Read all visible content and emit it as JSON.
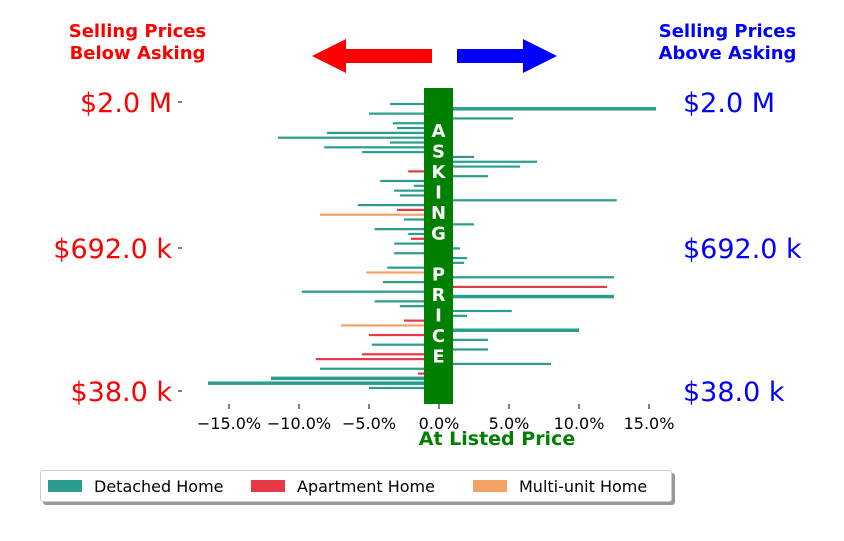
{
  "header_left": {
    "line1": "Selling Prices",
    "line2": "Below Asking"
  },
  "header_right": {
    "line1": "Selling Prices",
    "line2": "Above Asking"
  },
  "asking_band_letters": [
    "A",
    "S",
    "K",
    "I",
    "N",
    "G",
    "",
    "P",
    "R",
    "I",
    "C",
    "E"
  ],
  "colors": {
    "detached": "#2a9d8f",
    "apartment": "#e63946",
    "multi": "#f4a261",
    "band": "#008000",
    "left_text": "#ff0000",
    "right_text": "#0000ff"
  },
  "legend": [
    {
      "label": "Detached Home",
      "color": "#2a9d8f"
    },
    {
      "label": "Apartment Home",
      "color": "#e63946"
    },
    {
      "label": "Multi-unit Home",
      "color": "#f4a261"
    }
  ],
  "chart_data": {
    "type": "bar",
    "orientation": "horizontal",
    "xlabel": "At Listed Price",
    "xlim": [
      -17.5,
      17
    ],
    "x_ticks": [
      -15,
      -10,
      -5,
      0,
      5,
      10,
      15
    ],
    "x_tick_labels": [
      "−15.0%",
      "−10.0%",
      "−5.0%",
      "0.0%",
      "5.0%",
      "10.0%",
      "15.0%"
    ],
    "y_ticks_left": [
      "$2.0 M",
      "$692.0 k",
      "$38.0 k"
    ],
    "y_ticks_right": [
      "$2.0 M",
      "$692.0 k",
      "$38.0 k"
    ],
    "bars": [
      {
        "t": "d",
        "v": -3.5
      },
      {
        "t": "d",
        "v": 15.5
      },
      {
        "t": "d",
        "v": -5
      },
      {
        "t": "d",
        "v": 5.3
      },
      {
        "t": "d",
        "v": -3.3
      },
      {
        "t": "d",
        "v": -3
      },
      {
        "t": "d",
        "v": -8
      },
      {
        "t": "d",
        "v": -11.5
      },
      {
        "t": "d",
        "v": -3.5
      },
      {
        "t": "d",
        "v": -8.2
      },
      {
        "t": "d",
        "v": -5.5
      },
      {
        "t": "d",
        "v": 2.5
      },
      {
        "t": "d",
        "v": 7
      },
      {
        "t": "d",
        "v": 5.8
      },
      {
        "t": "a",
        "v": -2.2
      },
      {
        "t": "d",
        "v": 3.5
      },
      {
        "t": "d",
        "v": -4.2
      },
      {
        "t": "d",
        "v": -1.8
      },
      {
        "t": "d",
        "v": -3.2
      },
      {
        "t": "d",
        "v": -2.8
      },
      {
        "t": "d",
        "v": 12.7
      },
      {
        "t": "d",
        "v": -5.8
      },
      {
        "t": "a",
        "v": -3
      },
      {
        "t": "m",
        "v": -8.5
      },
      {
        "t": "d",
        "v": -2.5
      },
      {
        "t": "d",
        "v": 2.5
      },
      {
        "t": "d",
        "v": -4.6
      },
      {
        "t": "d",
        "v": -2.2
      },
      {
        "t": "a",
        "v": -2
      },
      {
        "t": "d",
        "v": -3.2
      },
      {
        "t": "d",
        "v": 1.5
      },
      {
        "t": "d",
        "v": -3.2
      },
      {
        "t": "d",
        "v": 2
      },
      {
        "t": "d",
        "v": 1.8
      },
      {
        "t": "d",
        "v": -3.7
      },
      {
        "t": "m",
        "v": -5.2
      },
      {
        "t": "d",
        "v": 12.5
      },
      {
        "t": "d",
        "v": -4
      },
      {
        "t": "a",
        "v": 12
      },
      {
        "t": "d",
        "v": -9.8
      },
      {
        "t": "d",
        "v": 12.5
      },
      {
        "t": "d",
        "v": -4.6
      },
      {
        "t": "d",
        "v": -2.8
      },
      {
        "t": "d",
        "v": 5.2
      },
      {
        "t": "d",
        "v": 2
      },
      {
        "t": "a",
        "v": -2.5
      },
      {
        "t": "m",
        "v": -7
      },
      {
        "t": "d",
        "v": 10
      },
      {
        "t": "a",
        "v": -5
      },
      {
        "t": "d",
        "v": 3.5
      },
      {
        "t": "d",
        "v": -4.8
      },
      {
        "t": "d",
        "v": 3.5
      },
      {
        "t": "a",
        "v": -5.5
      },
      {
        "t": "a",
        "v": -8.8
      },
      {
        "t": "d",
        "v": 8
      },
      {
        "t": "d",
        "v": -8.5
      },
      {
        "t": "a",
        "v": -1.5
      },
      {
        "t": "d",
        "v": -12
      },
      {
        "t": "d",
        "v": -16.5
      },
      {
        "t": "d",
        "v": -5
      }
    ]
  }
}
